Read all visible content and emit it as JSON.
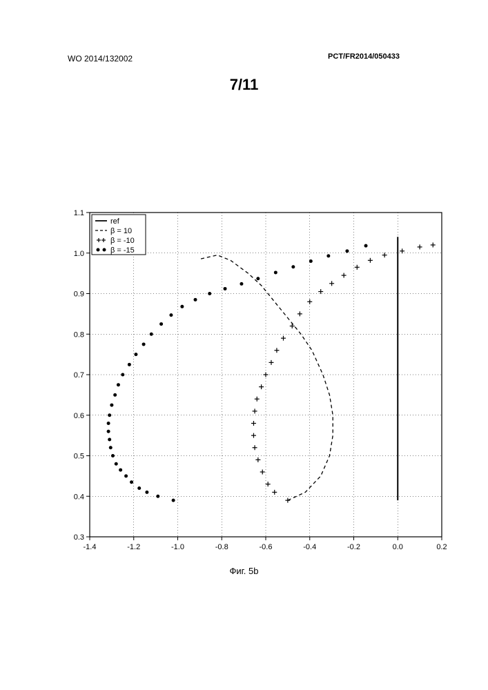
{
  "header": {
    "left": "WO 2014/132002",
    "right": "PCT/FR2014/050433",
    "pageNumber": "7/11"
  },
  "caption": "Фиг. 5b",
  "chart": {
    "type": "line-scatter",
    "background_color": "#ffffff",
    "border_color": "#000000",
    "grid_color": "#000000",
    "grid_dash": "1,3",
    "xlim": [
      -1.4,
      0.2
    ],
    "ylim": [
      0.3,
      1.1
    ],
    "xticks": [
      -1.4,
      -1.2,
      -1.0,
      -0.8,
      -0.6,
      -0.4,
      -0.2,
      0.0,
      0.2
    ],
    "yticks": [
      0.3,
      0.4,
      0.5,
      0.6,
      0.7,
      0.8,
      0.9,
      1.0,
      1.1
    ],
    "tick_fontsize": 11,
    "legend": {
      "position": "top-left",
      "border_color": "#000000",
      "items": [
        {
          "label": "ref",
          "style": "solid",
          "color": "#000000"
        },
        {
          "label": "β = 10",
          "style": "dashed",
          "color": "#000000"
        },
        {
          "label": "β = -10",
          "style": "plus",
          "color": "#000000"
        },
        {
          "label": "β = -15",
          "style": "dot",
          "color": "#000000"
        }
      ]
    },
    "series_ref": {
      "label": "ref",
      "color": "#000000",
      "line_width": 2,
      "points": [
        [
          0.0,
          0.39
        ],
        [
          0.0,
          1.04
        ]
      ]
    },
    "series_b10": {
      "label": "β = 10",
      "color": "#000000",
      "dash": "5,4",
      "points": [
        [
          -0.5,
          0.39
        ],
        [
          -0.42,
          0.41
        ],
        [
          -0.35,
          0.45
        ],
        [
          -0.31,
          0.5
        ],
        [
          -0.295,
          0.55
        ],
        [
          -0.295,
          0.6
        ],
        [
          -0.31,
          0.65
        ],
        [
          -0.34,
          0.7
        ],
        [
          -0.39,
          0.76
        ],
        [
          -0.44,
          0.8
        ],
        [
          -0.5,
          0.84
        ],
        [
          -0.56,
          0.88
        ],
        [
          -0.62,
          0.92
        ],
        [
          -0.68,
          0.95
        ],
        [
          -0.76,
          0.982
        ],
        [
          -0.82,
          0.995
        ],
        [
          -0.9,
          0.985
        ]
      ]
    },
    "series_bm10": {
      "label": "β = -10",
      "color": "#000000",
      "marker": "plus",
      "marker_size": 7,
      "points": [
        [
          -0.5,
          0.39
        ],
        [
          -0.56,
          0.41
        ],
        [
          -0.59,
          0.43
        ],
        [
          -0.615,
          0.46
        ],
        [
          -0.635,
          0.49
        ],
        [
          -0.65,
          0.52
        ],
        [
          -0.655,
          0.55
        ],
        [
          -0.655,
          0.58
        ],
        [
          -0.65,
          0.61
        ],
        [
          -0.64,
          0.64
        ],
        [
          -0.62,
          0.67
        ],
        [
          -0.6,
          0.7
        ],
        [
          -0.575,
          0.73
        ],
        [
          -0.55,
          0.76
        ],
        [
          -0.52,
          0.79
        ],
        [
          -0.48,
          0.82
        ],
        [
          -0.445,
          0.85
        ],
        [
          -0.4,
          0.88
        ],
        [
          -0.35,
          0.905
        ],
        [
          -0.3,
          0.925
        ],
        [
          -0.245,
          0.945
        ],
        [
          -0.185,
          0.965
        ],
        [
          -0.125,
          0.982
        ],
        [
          -0.06,
          0.995
        ],
        [
          0.02,
          1.005
        ],
        [
          0.1,
          1.015
        ],
        [
          0.16,
          1.02
        ]
      ]
    },
    "series_bm15": {
      "label": "β = -15",
      "color": "#000000",
      "marker": "dot",
      "marker_size": 5,
      "points": [
        [
          -1.02,
          0.39
        ],
        [
          -1.09,
          0.4
        ],
        [
          -1.14,
          0.41
        ],
        [
          -1.175,
          0.42
        ],
        [
          -1.21,
          0.435
        ],
        [
          -1.235,
          0.45
        ],
        [
          -1.26,
          0.465
        ],
        [
          -1.28,
          0.48
        ],
        [
          -1.295,
          0.5
        ],
        [
          -1.305,
          0.52
        ],
        [
          -1.31,
          0.54
        ],
        [
          -1.315,
          0.56
        ],
        [
          -1.315,
          0.58
        ],
        [
          -1.31,
          0.6
        ],
        [
          -1.3,
          0.625
        ],
        [
          -1.285,
          0.65
        ],
        [
          -1.27,
          0.675
        ],
        [
          -1.25,
          0.7
        ],
        [
          -1.22,
          0.725
        ],
        [
          -1.19,
          0.75
        ],
        [
          -1.155,
          0.775
        ],
        [
          -1.12,
          0.8
        ],
        [
          -1.075,
          0.825
        ],
        [
          -1.03,
          0.847
        ],
        [
          -0.98,
          0.868
        ],
        [
          -0.92,
          0.885
        ],
        [
          -0.855,
          0.9
        ],
        [
          -0.785,
          0.912
        ],
        [
          -0.71,
          0.924
        ],
        [
          -0.635,
          0.937
        ],
        [
          -0.555,
          0.952
        ],
        [
          -0.475,
          0.966
        ],
        [
          -0.395,
          0.98
        ],
        [
          -0.315,
          0.993
        ],
        [
          -0.23,
          1.005
        ],
        [
          -0.145,
          1.018
        ]
      ]
    }
  }
}
